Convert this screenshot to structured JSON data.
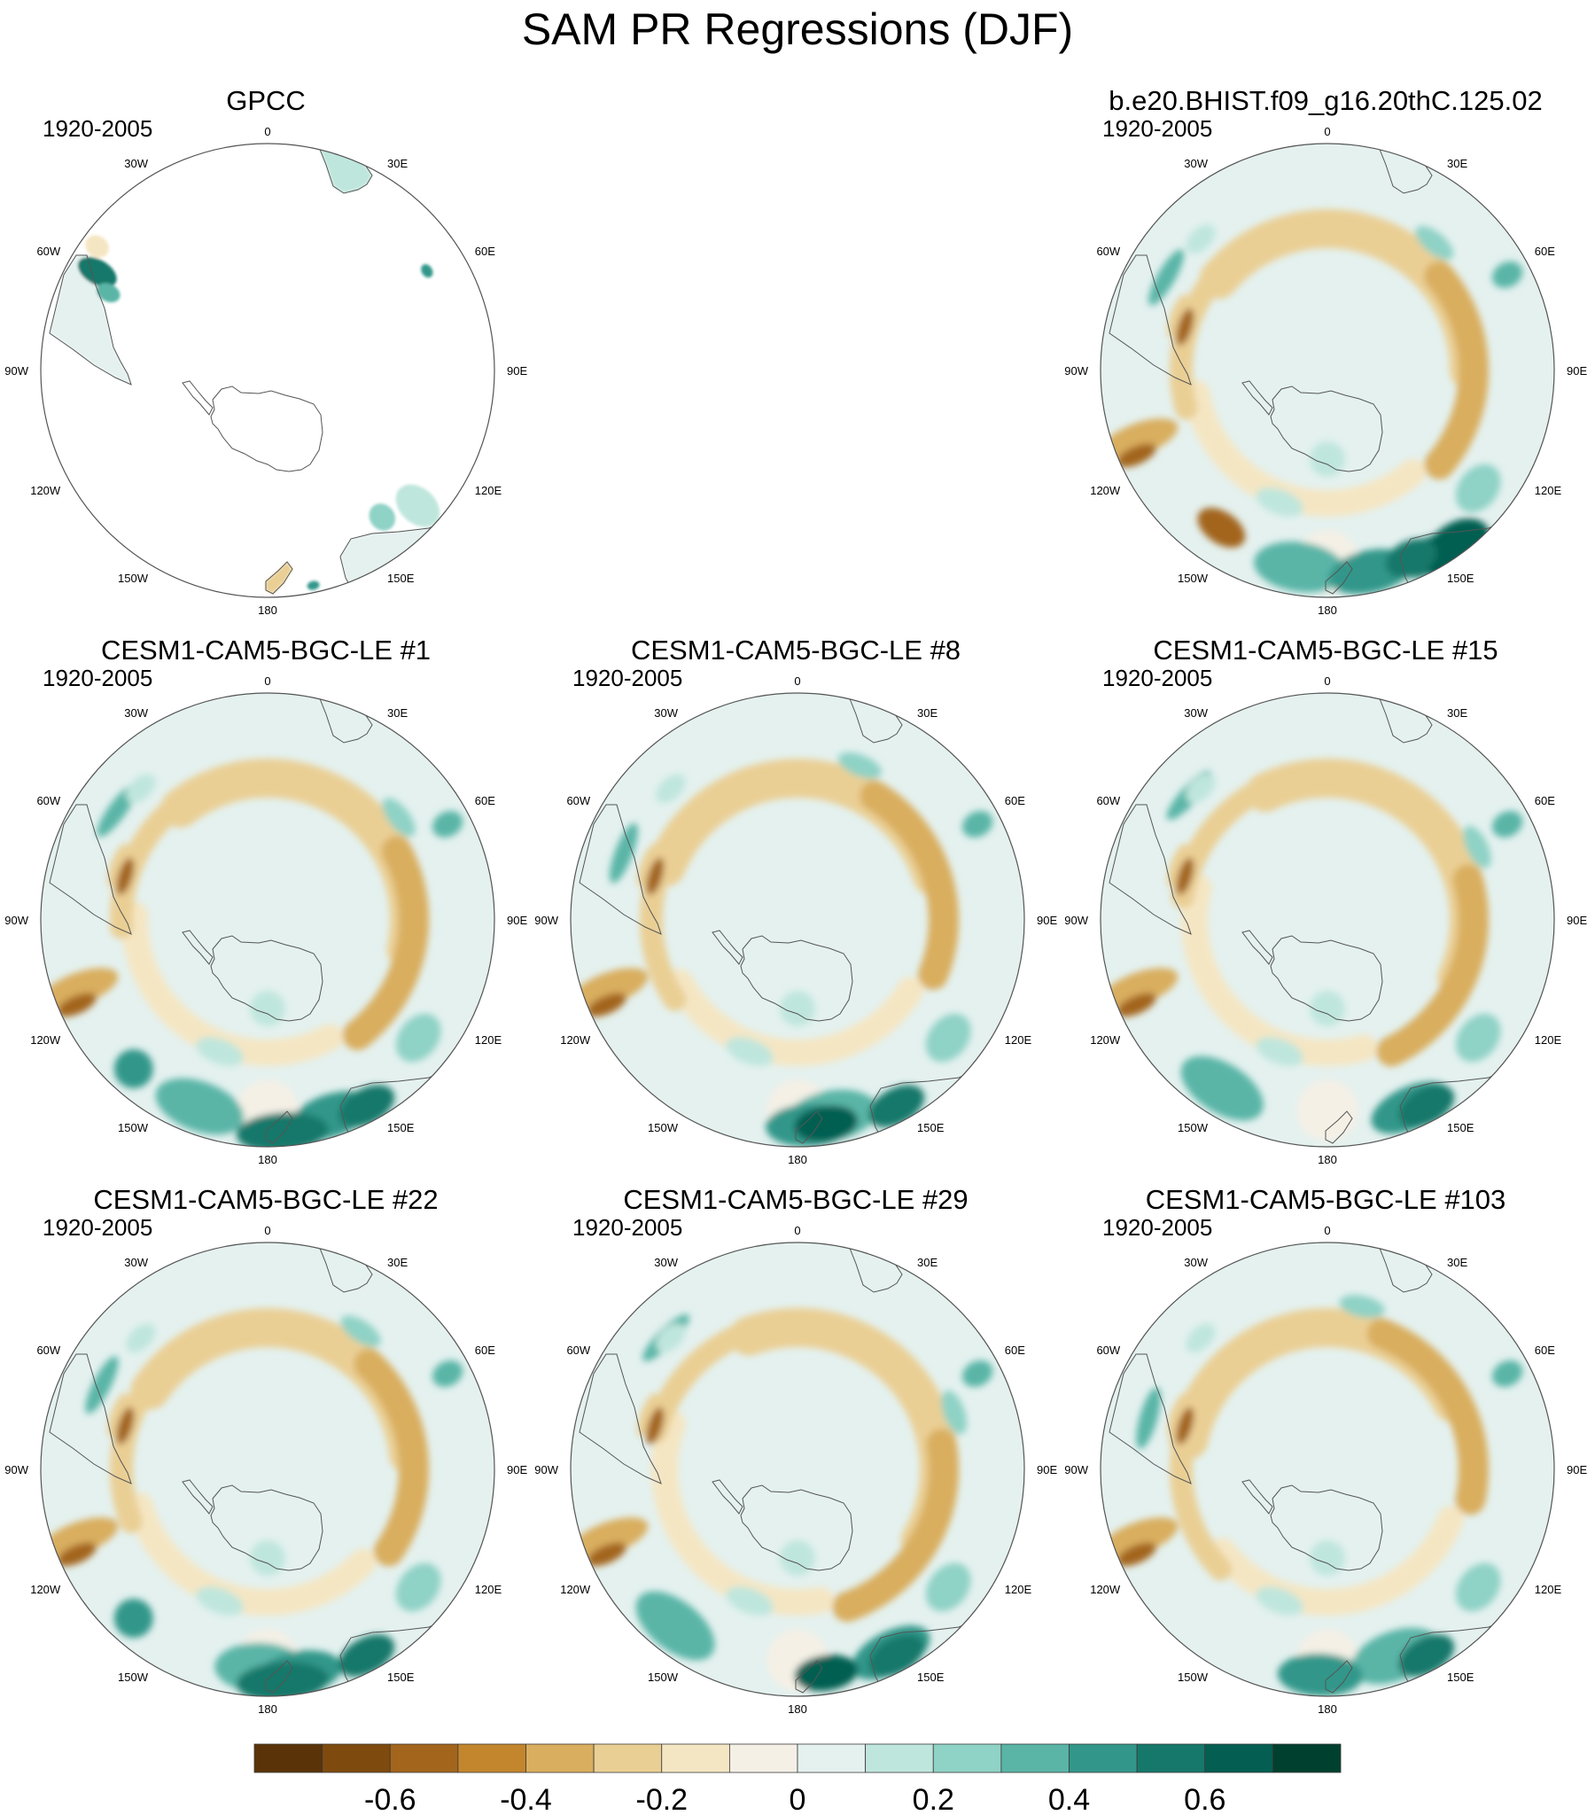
{
  "title": "SAM PR Regressions (DJF)",
  "period": "1920-2005",
  "lon_labels": [
    "0",
    "30E",
    "60E",
    "90E",
    "120E",
    "150E",
    "180",
    "150W",
    "120W",
    "90W",
    "60W",
    "30W"
  ],
  "colors": {
    "scale": [
      "#5a3309",
      "#7f4a0e",
      "#a3651c",
      "#c3862d",
      "#d9ae5e",
      "#eacf94",
      "#f5e6c3",
      "#f4f0e6",
      "#e4f1ef",
      "#bfe6dd",
      "#8fd2c6",
      "#5ab5a7",
      "#32978a",
      "#16786b",
      "#045e51",
      "#00402f"
    ],
    "land_outline": "#555555",
    "frame": "#555555"
  },
  "chart_data": {
    "type": "polar-stereographic contour map panels",
    "variable": "PR",
    "season": "DJF",
    "panels": [
      {
        "id": "gpcc",
        "title": "GPCC",
        "period": "1920-2005"
      },
      {
        "id": "bhist",
        "title": "b.e20.BHIST.f09_g16.20thC.125.02",
        "period": "1920-2005"
      },
      {
        "id": "le1",
        "title": "CESM1-CAM5-BGC-LE #1",
        "period": "1920-2005"
      },
      {
        "id": "le8",
        "title": "CESM1-CAM5-BGC-LE #8",
        "period": "1920-2005"
      },
      {
        "id": "le15",
        "title": "CESM1-CAM5-BGC-LE #15",
        "period": "1920-2005"
      },
      {
        "id": "le22",
        "title": "CESM1-CAM5-BGC-LE #22",
        "period": "1920-2005"
      },
      {
        "id": "le29",
        "title": "CESM1-CAM5-BGC-LE #29",
        "period": "1920-2005"
      },
      {
        "id": "le103",
        "title": "CESM1-CAM5-BGC-LE #103",
        "period": "1920-2005"
      }
    ],
    "colorbar": {
      "levels": [
        -0.7,
        -0.6,
        -0.5,
        -0.4,
        -0.3,
        -0.2,
        -0.1,
        0,
        0.1,
        0.2,
        0.3,
        0.4,
        0.5,
        0.6,
        0.7
      ],
      "tick_labels": [
        "-0.6",
        "-0.4",
        "-0.2",
        "0",
        "0.2",
        "0.4",
        "0.6"
      ]
    }
  }
}
